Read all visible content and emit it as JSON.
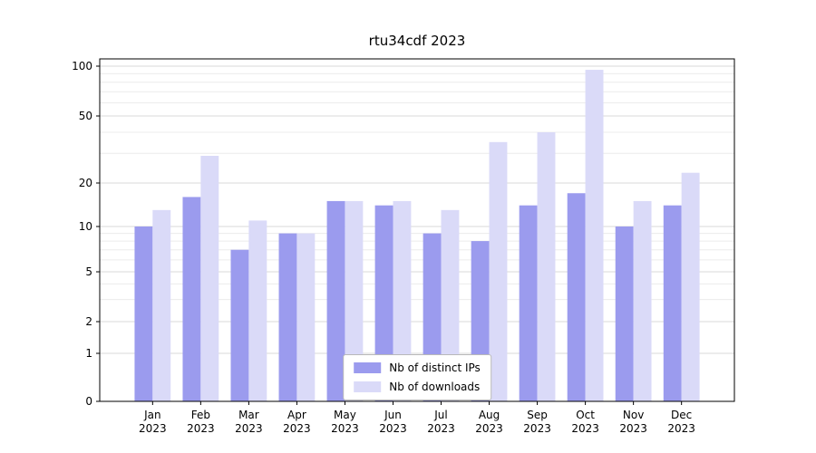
{
  "chart_data": {
    "type": "bar",
    "title": "rtu34cdf 2023",
    "categories": [
      "Jan 2023",
      "Feb 2023",
      "Mar 2023",
      "Apr 2023",
      "May 2023",
      "Jun 2023",
      "Jul 2023",
      "Aug 2023",
      "Sep 2023",
      "Oct 2023",
      "Nov 2023",
      "Dec 2023"
    ],
    "series": [
      {
        "name": "Nb of distinct IPs",
        "color": "#9b9bee",
        "values": [
          10,
          16,
          7,
          9,
          15,
          14,
          9,
          8,
          14,
          17,
          10,
          14
        ]
      },
      {
        "name": "Nb of downloads",
        "color": "#dadaf8",
        "values": [
          13,
          29,
          11,
          9,
          15,
          15,
          13,
          35,
          40,
          95,
          15,
          23
        ]
      }
    ],
    "yscale": "symlog",
    "yticks": [
      0,
      1,
      2,
      5,
      10,
      20,
      50,
      100
    ],
    "ylim": [
      0,
      112
    ],
    "grid": true,
    "legend_position": "lower center",
    "xlabel": "",
    "ylabel": ""
  }
}
